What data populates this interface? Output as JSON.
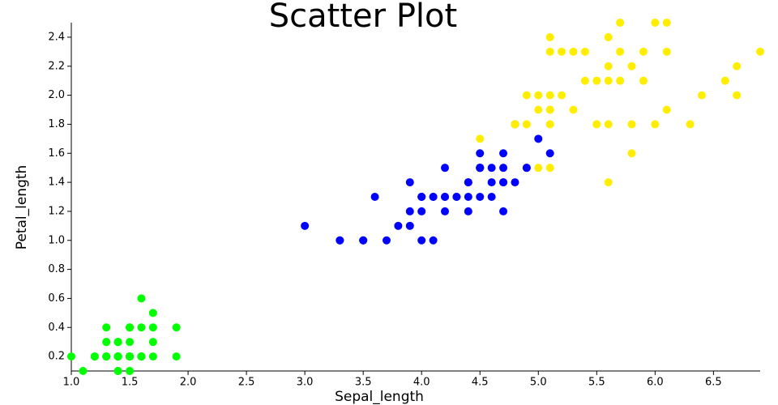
{
  "chart_data": {
    "type": "scatter",
    "title": "Scatter Plot",
    "x_label": "Sepal_length",
    "y_label": "Petal_length",
    "xlim": [
      1.0,
      6.9
    ],
    "ylim": [
      0.1,
      2.5
    ],
    "xticks": [
      {
        "value": 1,
        "label": "1.0"
      },
      1.5,
      {
        "value": 2,
        "label": "2.0"
      },
      2.5,
      {
        "value": 3,
        "label": "3.0"
      },
      3.5,
      {
        "value": 4,
        "label": "4.0"
      },
      4.5,
      {
        "value": 5,
        "label": "5.0"
      },
      5.5,
      {
        "value": 6,
        "label": "6.0"
      },
      6.5
    ],
    "yticks": [
      0.2,
      0.4,
      0.6,
      0.8,
      {
        "value": 1,
        "label": "1.0"
      },
      1.2,
      1.4,
      1.6,
      1.8,
      {
        "value": 2,
        "label": "2.0"
      },
      2.2,
      2.4
    ],
    "series": [
      {
        "color": "#00ff00",
        "x": [
          1.4,
          1.4,
          1.3,
          1.5,
          1.4,
          1.7,
          1.4,
          1.5,
          1.4,
          1.5,
          1.5,
          1.6,
          1.4,
          1.1,
          1.2,
          1.5,
          1.3,
          1.4,
          1.7,
          1.5,
          1.7,
          1.5,
          1.0,
          1.7,
          1.9,
          1.6,
          1.6,
          1.5,
          1.4,
          1.6,
          1.6,
          1.5,
          1.5,
          1.4,
          1.5,
          1.2,
          1.3,
          1.4,
          1.3,
          1.5,
          1.3,
          1.3,
          1.3,
          1.6,
          1.9,
          1.4,
          1.6,
          1.4,
          1.5,
          1.4
        ],
        "values": [
          0.2,
          0.2,
          0.2,
          0.2,
          0.2,
          0.4,
          0.3,
          0.2,
          0.2,
          0.1,
          0.2,
          0.2,
          0.1,
          0.1,
          0.2,
          0.4,
          0.4,
          0.3,
          0.3,
          0.3,
          0.2,
          0.4,
          0.2,
          0.5,
          0.2,
          0.2,
          0.4,
          0.2,
          0.2,
          0.2,
          0.2,
          0.4,
          0.1,
          0.2,
          0.2,
          0.2,
          0.2,
          0.1,
          0.2,
          0.2,
          0.3,
          0.3,
          0.2,
          0.6,
          0.4,
          0.3,
          0.2,
          0.2,
          0.2,
          0.2
        ]
      },
      {
        "color": "#0000ff",
        "x": [
          4.7,
          4.5,
          4.9,
          4.0,
          4.6,
          4.5,
          4.7,
          3.3,
          4.6,
          3.9,
          3.5,
          4.2,
          4.0,
          4.7,
          3.6,
          4.4,
          4.5,
          4.1,
          4.5,
          3.9,
          4.8,
          4.0,
          4.9,
          4.7,
          4.3,
          4.4,
          4.8,
          5.0,
          4.5,
          3.5,
          3.8,
          3.7,
          3.9,
          5.1,
          4.5,
          4.5,
          4.7,
          4.4,
          4.1,
          4.0,
          4.4,
          4.6,
          4.0,
          3.3,
          4.2,
          4.2,
          4.2,
          4.3,
          3.0,
          4.1
        ],
        "values": [
          1.4,
          1.5,
          1.5,
          1.3,
          1.5,
          1.3,
          1.6,
          1.0,
          1.3,
          1.4,
          1.0,
          1.5,
          1.0,
          1.4,
          1.3,
          1.4,
          1.5,
          1.0,
          1.5,
          1.1,
          1.8,
          1.3,
          1.5,
          1.2,
          1.3,
          1.4,
          1.4,
          1.7,
          1.5,
          1.0,
          1.1,
          1.0,
          1.2,
          1.6,
          1.5,
          1.6,
          1.5,
          1.3,
          1.3,
          1.3,
          1.2,
          1.4,
          1.2,
          1.0,
          1.3,
          1.2,
          1.3,
          1.3,
          1.1,
          1.3
        ]
      },
      {
        "color": "#ffee00",
        "x": [
          6.0,
          5.1,
          5.9,
          5.6,
          5.8,
          6.6,
          4.5,
          6.3,
          5.8,
          6.1,
          5.1,
          5.3,
          5.5,
          5.0,
          5.1,
          5.3,
          5.5,
          6.7,
          6.9,
          5.0,
          5.7,
          4.9,
          6.7,
          4.9,
          5.7,
          6.0,
          4.8,
          4.9,
          5.6,
          5.8,
          6.1,
          6.4,
          5.6,
          5.1,
          5.6,
          6.1,
          5.6,
          5.5,
          4.8,
          5.4,
          5.6,
          5.1,
          5.1,
          5.9,
          5.7,
          5.2,
          5.0,
          5.2,
          5.4,
          5.1
        ],
        "values": [
          2.5,
          1.9,
          2.1,
          1.8,
          2.2,
          2.1,
          1.7,
          1.8,
          1.8,
          2.5,
          2.0,
          1.9,
          2.1,
          2.0,
          2.4,
          2.3,
          1.8,
          2.2,
          2.3,
          1.5,
          2.3,
          2.0,
          2.0,
          1.8,
          2.1,
          1.8,
          1.8,
          1.8,
          2.1,
          1.6,
          1.9,
          2.0,
          2.2,
          1.5,
          1.4,
          2.3,
          2.4,
          1.8,
          1.8,
          2.1,
          2.4,
          2.3,
          1.9,
          2.3,
          2.5,
          2.3,
          1.9,
          2.0,
          2.3,
          1.8
        ]
      }
    ]
  }
}
